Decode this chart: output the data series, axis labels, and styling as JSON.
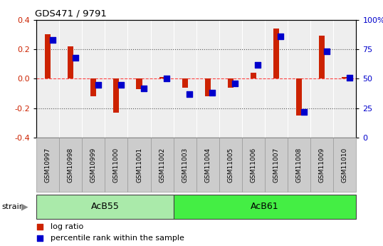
{
  "title": "GDS471 / 9791",
  "samples": [
    "GSM10997",
    "GSM10998",
    "GSM10999",
    "GSM11000",
    "GSM11001",
    "GSM11002",
    "GSM11003",
    "GSM11004",
    "GSM11005",
    "GSM11006",
    "GSM11007",
    "GSM11008",
    "GSM11009",
    "GSM11010"
  ],
  "log_ratio": [
    0.3,
    0.22,
    -0.12,
    -0.23,
    -0.07,
    0.01,
    -0.06,
    -0.12,
    -0.06,
    0.04,
    0.34,
    -0.25,
    0.29,
    0.01
  ],
  "percentile": [
    83,
    68,
    45,
    45,
    42,
    50,
    37,
    38,
    46,
    62,
    86,
    22,
    73,
    51
  ],
  "groups": [
    {
      "label": "AcB55",
      "start": 0,
      "end": 6,
      "color": "#aaeaaa"
    },
    {
      "label": "AcB61",
      "start": 6,
      "end": 14,
      "color": "#44ee44"
    }
  ],
  "ylim": [
    -0.4,
    0.4
  ],
  "yticks": [
    -0.4,
    -0.2,
    0.0,
    0.2,
    0.4
  ],
  "right_yticks": [
    0,
    25,
    50,
    75,
    100
  ],
  "hline_zero_color": "#ff4444",
  "hline_dotted_color": "#555555",
  "bar_color": "#cc2200",
  "dot_color": "#0000cc",
  "bg_color": "#ffffff",
  "plot_bg": "#eeeeee",
  "bar_width": 0.25,
  "dot_size": 38,
  "label_bg": "#cccccc"
}
